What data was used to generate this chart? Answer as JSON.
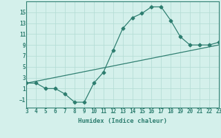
{
  "x": [
    3,
    4,
    5,
    6,
    7,
    8,
    9,
    10,
    11,
    12,
    13,
    14,
    15,
    16,
    17,
    18,
    19,
    20,
    21,
    22,
    23
  ],
  "y_curve": [
    2,
    2,
    1,
    1,
    0,
    -1.5,
    -1.5,
    2,
    4,
    8,
    12,
    14,
    14.8,
    16,
    16,
    13.5,
    10.5,
    9,
    9,
    9,
    9.5
  ],
  "trend_x": [
    3,
    23
  ],
  "trend_y": [
    2,
    9
  ],
  "color": "#2d7d6f",
  "bg_color": "#d4f0eb",
  "grid_color": "#b5ddd6",
  "xlabel": "Humidex (Indice chaleur)",
  "xlim": [
    3,
    23
  ],
  "ylim": [
    -2.5,
    17
  ],
  "yticks": [
    -1,
    1,
    3,
    5,
    7,
    9,
    11,
    13,
    15
  ],
  "xticks": [
    3,
    4,
    5,
    6,
    7,
    8,
    9,
    10,
    11,
    12,
    13,
    14,
    15,
    16,
    17,
    18,
    19,
    20,
    21,
    22,
    23
  ],
  "tick_fontsize": 5.5,
  "xlabel_fontsize": 6.5
}
